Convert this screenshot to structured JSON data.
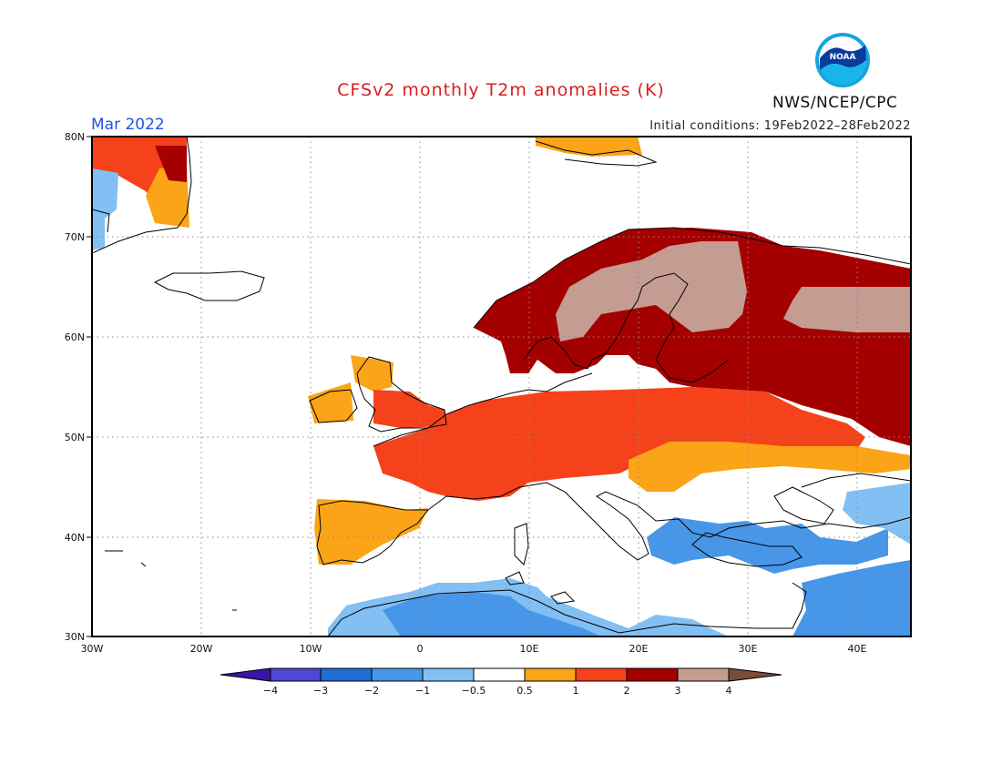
{
  "title": "CFSv2 monthly T2m anomalies (K)",
  "valid_month": "Mar 2022",
  "initial_conditions": "Initial conditions: 19Feb2022–28Feb2022",
  "agency": "NWS/NCEP/CPC",
  "logo_text": "NOAA",
  "map": {
    "lon_range": [
      -30,
      45
    ],
    "lat_range": [
      30,
      80
    ],
    "lat_labels": [
      "30N",
      "40N",
      "50N",
      "60N",
      "70N",
      "80N"
    ],
    "lon_labels": [
      "30W",
      "20W",
      "10W",
      "0",
      "10E",
      "20E",
      "30E",
      "40E"
    ]
  },
  "colorbar": {
    "labels": [
      "−4",
      "−3",
      "−2",
      "−1",
      "−0.5",
      "0.5",
      "1",
      "2",
      "3",
      "4"
    ],
    "colors": [
      "#3a14a8",
      "#4f47d6",
      "#1f6ed4",
      "#4796e8",
      "#82bff2",
      "#ffffff",
      "#fba417",
      "#f5421a",
      "#a40000",
      "#c49c92",
      "#7a4c3a"
    ]
  },
  "colors": {
    "title": "#d81e1e",
    "month": "#1f50e6",
    "land_outline": "#000000",
    "grid": "#8a8a8a"
  }
}
